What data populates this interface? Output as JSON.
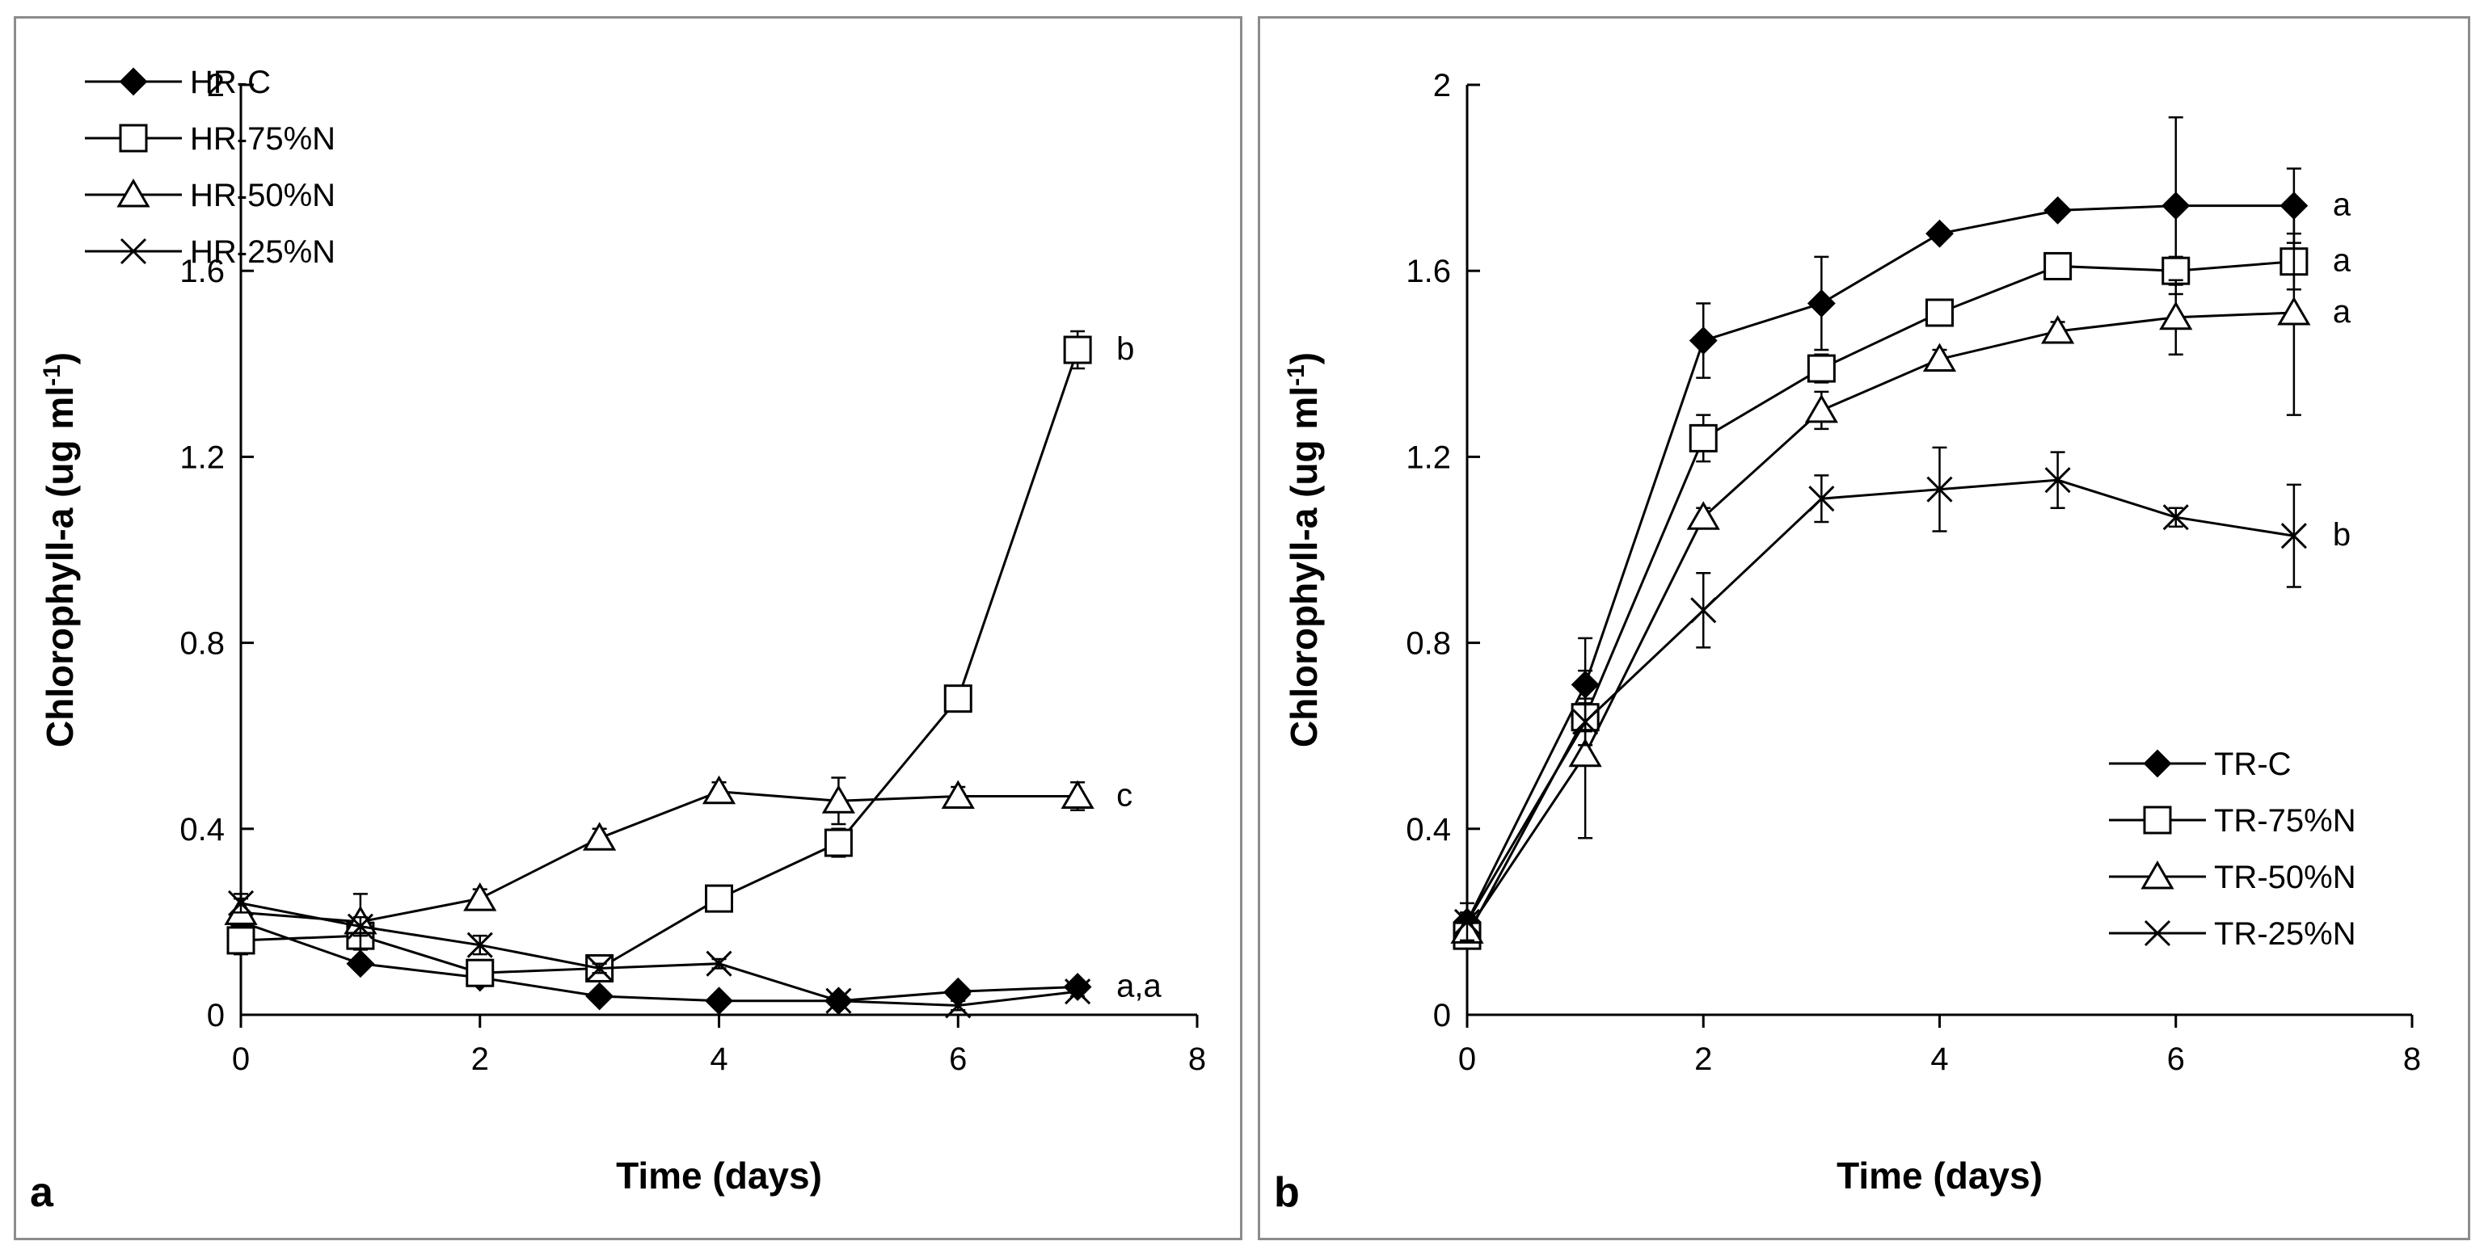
{
  "chart_data": [
    {
      "type": "line",
      "panel_label": "a",
      "xlabel": "Time (days)",
      "ylabel_main": "Chlorophyll-a (ug ml",
      "ylabel_sup": "-1",
      "ylabel_close": ")",
      "xlim": [
        0,
        8
      ],
      "ylim": [
        0,
        2
      ],
      "xticks": [
        0,
        2,
        4,
        6,
        8
      ],
      "xtick_labels": [
        "0",
        "2",
        "4",
        "6",
        "8"
      ],
      "yticks": [
        0,
        0.4,
        0.8,
        1.2,
        1.6,
        2
      ],
      "ytick_labels": [
        "0",
        "0.4",
        "0.8",
        "1.2",
        "1.6",
        "2"
      ],
      "legend_position": "top-left",
      "series": [
        {
          "name": "HR-C",
          "marker": "diamond",
          "x": [
            0,
            1,
            2,
            3,
            4,
            5,
            6,
            7
          ],
          "y": [
            0.2,
            0.11,
            0.08,
            0.04,
            0.03,
            0.03,
            0.05,
            0.06
          ],
          "err": [
            0.01,
            0.01,
            0.01,
            0.01,
            0.01,
            0.01,
            0.01,
            0.01
          ]
        },
        {
          "name": "HR-75%N",
          "marker": "square",
          "x": [
            0,
            1,
            2,
            3,
            4,
            5,
            6,
            7
          ],
          "y": [
            0.16,
            0.17,
            0.09,
            0.1,
            0.25,
            0.37,
            0.68,
            1.43
          ],
          "err": [
            0.03,
            0.02,
            0.02,
            0.02,
            0.02,
            0.03,
            0.02,
            0.04
          ]
        },
        {
          "name": "HR-50%N",
          "marker": "triangle",
          "x": [
            0,
            1,
            2,
            3,
            4,
            5,
            6,
            7
          ],
          "y": [
            0.22,
            0.2,
            0.25,
            0.38,
            0.48,
            0.46,
            0.47,
            0.47
          ],
          "err": [
            0.03,
            0.06,
            0.02,
            0.02,
            0.02,
            0.05,
            0.02,
            0.03
          ]
        },
        {
          "name": "HR-25%N",
          "marker": "cross",
          "x": [
            0,
            1,
            2,
            3,
            4,
            5,
            6,
            7
          ],
          "y": [
            0.24,
            0.19,
            0.15,
            0.1,
            0.11,
            0.03,
            0.02,
            0.05
          ],
          "err": [
            0.02,
            0.02,
            0.02,
            0.01,
            0.01,
            0.01,
            0.01,
            0.01
          ]
        }
      ],
      "annotations": [
        {
          "text": "b",
          "x": 7,
          "y": 1.43
        },
        {
          "text": "c",
          "x": 7,
          "y": 0.47
        },
        {
          "text": "a,a",
          "x": 7,
          "y": 0.06
        }
      ]
    },
    {
      "type": "line",
      "panel_label": "b",
      "xlabel": "Time (days)",
      "ylabel_main": "Chlorophyll-a (ug ml",
      "ylabel_sup": "-1",
      "ylabel_close": ")",
      "xlim": [
        0,
        8
      ],
      "ylim": [
        0,
        2
      ],
      "xticks": [
        0,
        2,
        4,
        6,
        8
      ],
      "xtick_labels": [
        "0",
        "2",
        "4",
        "6",
        "8"
      ],
      "yticks": [
        0,
        0.4,
        0.8,
        1.2,
        1.6,
        2
      ],
      "ytick_labels": [
        "0",
        "0.4",
        "0.8",
        "1.2",
        "1.6",
        "2"
      ],
      "legend_position": "bottom-right",
      "series": [
        {
          "name": "TR-C",
          "marker": "diamond",
          "x": [
            0,
            1,
            2,
            3,
            4,
            5,
            6,
            7
          ],
          "y": [
            0.2,
            0.71,
            1.45,
            1.53,
            1.68,
            1.73,
            1.74,
            1.74
          ],
          "err": [
            0.02,
            0.1,
            0.08,
            0.1,
            0.01,
            0.01,
            0.19,
            0.08
          ]
        },
        {
          "name": "TR-75%N",
          "marker": "square",
          "x": [
            0,
            1,
            2,
            3,
            4,
            5,
            6,
            7
          ],
          "y": [
            0.17,
            0.64,
            1.24,
            1.39,
            1.51,
            1.61,
            1.6,
            1.62
          ],
          "err": [
            0.02,
            0.03,
            0.05,
            0.03,
            0.02,
            0.02,
            0.03,
            0.06
          ]
        },
        {
          "name": "TR-50%N",
          "marker": "triangle",
          "x": [
            0,
            1,
            2,
            3,
            4,
            5,
            6,
            7
          ],
          "y": [
            0.18,
            0.56,
            1.07,
            1.3,
            1.41,
            1.47,
            1.5,
            1.51
          ],
          "err": [
            0.02,
            0.18,
            0.02,
            0.04,
            0.02,
            0.02,
            0.08,
            0.22
          ]
        },
        {
          "name": "TR-25%N",
          "marker": "cross",
          "x": [
            0,
            1,
            2,
            3,
            4,
            5,
            6,
            7
          ],
          "y": [
            0.2,
            0.63,
            0.87,
            1.11,
            1.13,
            1.15,
            1.07,
            1.03
          ],
          "err": [
            0.04,
            0.05,
            0.08,
            0.05,
            0.09,
            0.06,
            0.02,
            0.11
          ]
        }
      ],
      "annotations": [
        {
          "text": "a",
          "x": 7,
          "y": 1.74
        },
        {
          "text": "a",
          "x": 7,
          "y": 1.62
        },
        {
          "text": "a",
          "x": 7,
          "y": 1.51
        },
        {
          "text": "b",
          "x": 7,
          "y": 1.03
        }
      ]
    }
  ]
}
